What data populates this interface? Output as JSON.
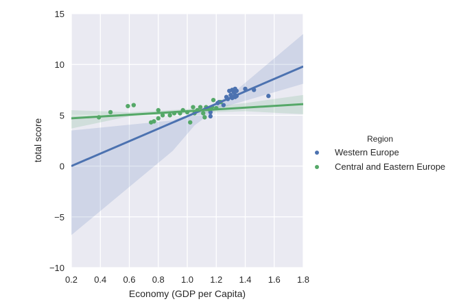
{
  "chart_data": {
    "type": "scatter",
    "xlabel": "Economy (GDP per Capita)",
    "ylabel": "total score",
    "xlim": [
      0.2,
      1.8
    ],
    "ylim": [
      -10,
      15
    ],
    "xticks": [
      "0.2",
      "0.4",
      "0.6",
      "0.8",
      "1.0",
      "1.2",
      "1.4",
      "1.6",
      "1.8"
    ],
    "yticks": [
      "15",
      "10",
      "5",
      "0",
      "−5",
      "−10"
    ],
    "grid": true,
    "legend": {
      "title": "Region",
      "position": "right"
    },
    "series": [
      {
        "name": "Western Europe",
        "color": "#4c72b0",
        "points": [
          [
            1.16,
            4.9
          ],
          [
            1.16,
            5.3
          ],
          [
            1.21,
            6.2
          ],
          [
            1.25,
            6.0
          ],
          [
            1.27,
            6.8
          ],
          [
            1.28,
            6.6
          ],
          [
            1.29,
            7.4
          ],
          [
            1.3,
            7.0
          ],
          [
            1.31,
            7.5
          ],
          [
            1.31,
            6.7
          ],
          [
            1.32,
            7.3
          ],
          [
            1.33,
            7.6
          ],
          [
            1.33,
            7.0
          ],
          [
            1.34,
            6.9
          ],
          [
            1.34,
            7.4
          ],
          [
            1.4,
            7.6
          ],
          [
            1.46,
            7.5
          ],
          [
            1.56,
            6.9
          ],
          [
            1.33,
            6.8
          ],
          [
            1.22,
            6.3
          ]
        ],
        "fit": {
          "x": [
            0.2,
            1.8
          ],
          "y": [
            0.0,
            9.8
          ]
        },
        "ci_upper": [
          [
            0.2,
            3.5
          ],
          [
            0.9,
            4.5
          ],
          [
            1.15,
            5.7
          ],
          [
            1.35,
            7.6
          ],
          [
            1.8,
            13.0
          ]
        ],
        "ci_lower": [
          [
            0.2,
            -6.8
          ],
          [
            0.9,
            1.5
          ],
          [
            1.05,
            4.0
          ],
          [
            1.2,
            5.6
          ],
          [
            1.8,
            8.1
          ]
        ]
      },
      {
        "name": "Central and Eastern Europe",
        "color": "#55a868",
        "points": [
          [
            0.39,
            4.8
          ],
          [
            0.47,
            5.3
          ],
          [
            0.59,
            5.9
          ],
          [
            0.63,
            6.0
          ],
          [
            0.75,
            4.3
          ],
          [
            0.77,
            4.4
          ],
          [
            0.8,
            4.7
          ],
          [
            0.8,
            5.5
          ],
          [
            0.83,
            5.0
          ],
          [
            0.88,
            5.0
          ],
          [
            0.91,
            5.2
          ],
          [
            0.95,
            5.2
          ],
          [
            0.97,
            5.5
          ],
          [
            1.0,
            5.3
          ],
          [
            1.02,
            4.3
          ],
          [
            1.04,
            5.8
          ],
          [
            1.05,
            5.2
          ],
          [
            1.07,
            5.5
          ],
          [
            1.09,
            5.8
          ],
          [
            1.11,
            5.2
          ],
          [
            1.12,
            4.8
          ],
          [
            1.13,
            5.8
          ],
          [
            1.15,
            5.6
          ],
          [
            1.17,
            5.8
          ],
          [
            1.18,
            6.5
          ],
          [
            1.2,
            5.7
          ],
          [
            1.23,
            6.3
          ]
        ],
        "fit": {
          "x": [
            0.2,
            1.8
          ],
          "y": [
            4.7,
            6.1
          ]
        },
        "ci_upper": [
          [
            0.2,
            5.5
          ],
          [
            0.6,
            5.3
          ],
          [
            1.0,
            5.6
          ],
          [
            1.4,
            6.2
          ],
          [
            1.8,
            7.0
          ]
        ],
        "ci_lower": [
          [
            0.2,
            3.7
          ],
          [
            0.6,
            4.9
          ],
          [
            1.0,
            5.2
          ],
          [
            1.4,
            5.4
          ],
          [
            1.8,
            5.1
          ]
        ]
      }
    ]
  }
}
